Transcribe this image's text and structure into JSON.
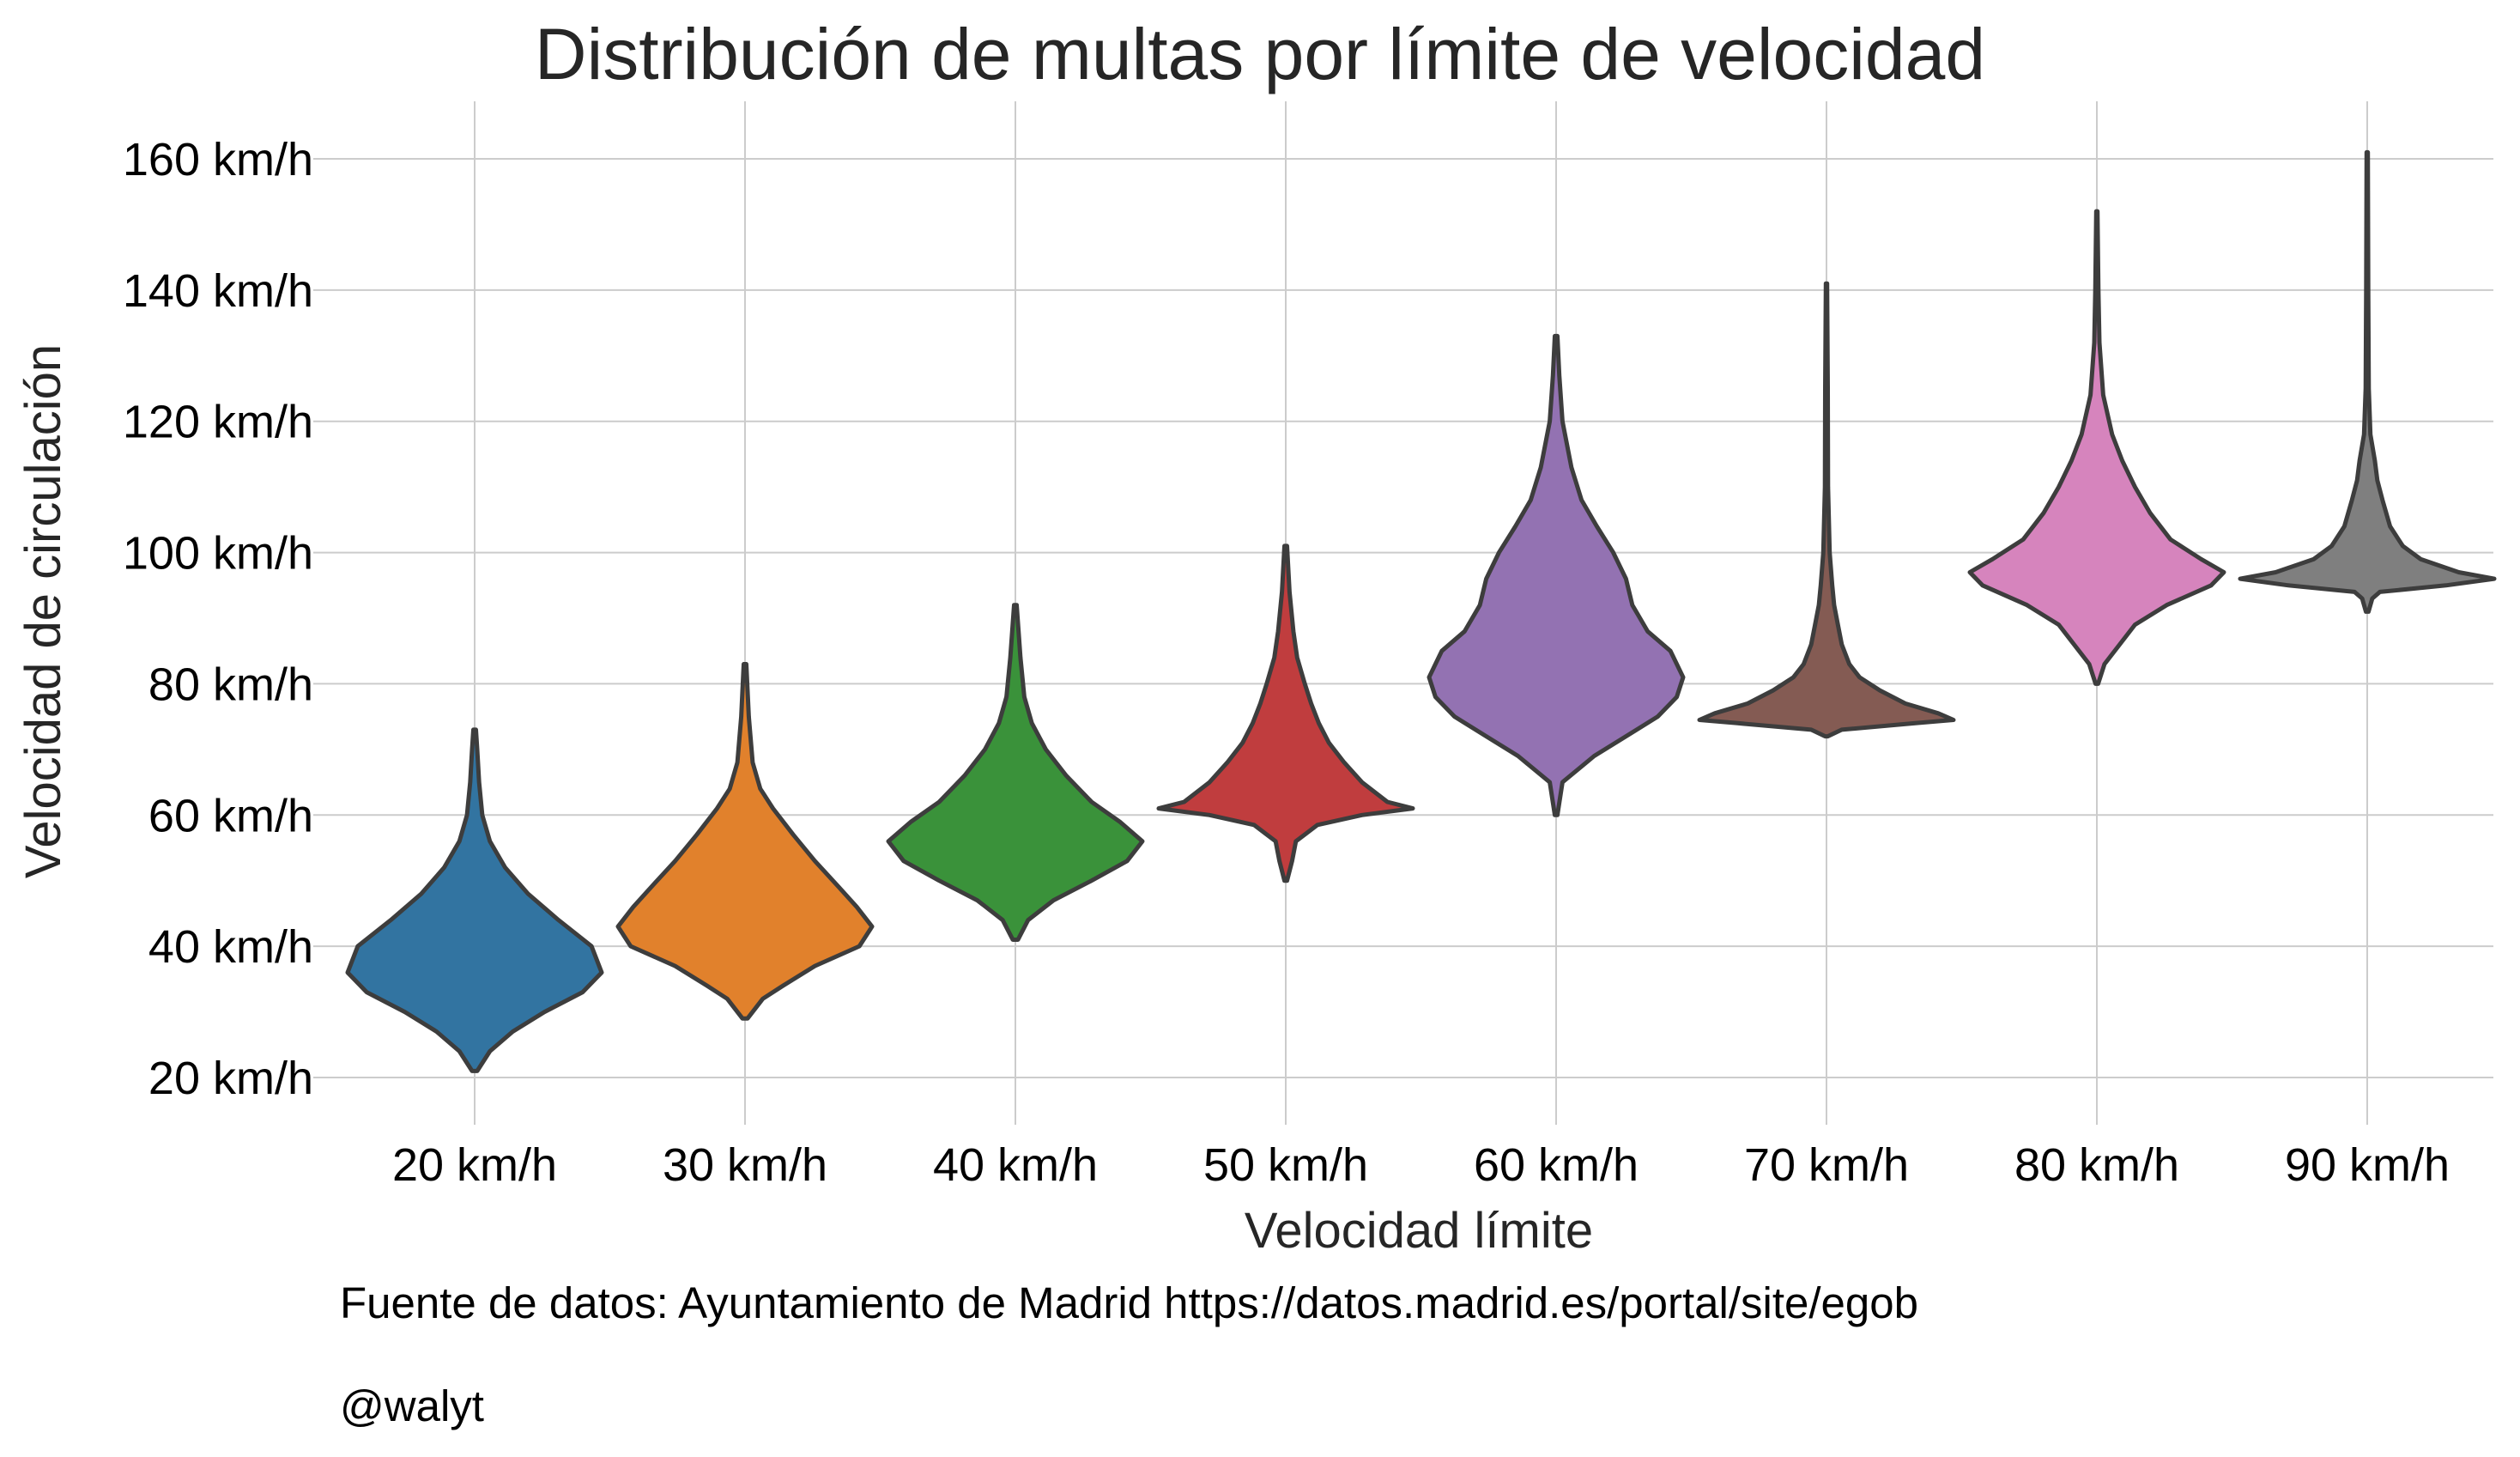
{
  "chart_data": {
    "type": "violin",
    "title": "Distribución de multas por límite de velocidad",
    "xlabel": "Velocidad límite",
    "ylabel": "Velocidad de circulación",
    "ylim": [
      15,
      168
    ],
    "yticks": [
      20,
      40,
      60,
      80,
      100,
      120,
      140,
      160
    ],
    "ytick_labels": [
      "20 km/h",
      "40 km/h",
      "60 km/h",
      "80 km/h",
      "100 km/h",
      "120 km/h",
      "140 km/h",
      "160 km/h"
    ],
    "grid": true,
    "categories": [
      "20 km/h",
      "30 km/h",
      "40 km/h",
      "50 km/h",
      "60 km/h",
      "70 km/h",
      "80 km/h",
      "90 km/h"
    ],
    "colors": [
      "#3274a1",
      "#e1812c",
      "#3a923a",
      "#c03d3e",
      "#9372b2",
      "#845b53",
      "#d684bd",
      "#7f7f7f"
    ],
    "outline_color": "#3d3d3d",
    "series": [
      {
        "min": 21,
        "max": 73,
        "profile": [
          [
            21,
            0.02
          ],
          [
            24,
            0.12
          ],
          [
            27,
            0.3
          ],
          [
            30,
            0.55
          ],
          [
            33,
            0.85
          ],
          [
            36,
            1.0
          ],
          [
            40,
            0.92
          ],
          [
            44,
            0.66
          ],
          [
            48,
            0.42
          ],
          [
            52,
            0.24
          ],
          [
            56,
            0.12
          ],
          [
            60,
            0.06
          ],
          [
            65,
            0.035
          ],
          [
            70,
            0.02
          ],
          [
            73,
            0.01
          ]
        ]
      },
      {
        "min": 29,
        "max": 83,
        "profile": [
          [
            29,
            0.02
          ],
          [
            32,
            0.14
          ],
          [
            34,
            0.3
          ],
          [
            37,
            0.55
          ],
          [
            40,
            0.9
          ],
          [
            43,
            1.0
          ],
          [
            46,
            0.88
          ],
          [
            49,
            0.74
          ],
          [
            53,
            0.55
          ],
          [
            57,
            0.38
          ],
          [
            61,
            0.22
          ],
          [
            64,
            0.12
          ],
          [
            68,
            0.06
          ],
          [
            75,
            0.03
          ],
          [
            83,
            0.01
          ]
        ]
      },
      {
        "min": 41,
        "max": 92,
        "profile": [
          [
            41,
            0.02
          ],
          [
            44,
            0.1
          ],
          [
            47,
            0.3
          ],
          [
            50,
            0.6
          ],
          [
            53,
            0.88
          ],
          [
            56,
            1.0
          ],
          [
            59,
            0.82
          ],
          [
            62,
            0.6
          ],
          [
            66,
            0.4
          ],
          [
            70,
            0.24
          ],
          [
            74,
            0.13
          ],
          [
            78,
            0.07
          ],
          [
            84,
            0.04
          ],
          [
            92,
            0.01
          ]
        ]
      },
      {
        "min": 50,
        "max": 101,
        "profile": [
          [
            50,
            0.01
          ],
          [
            53,
            0.05
          ],
          [
            56,
            0.08
          ],
          [
            58.5,
            0.25
          ],
          [
            60,
            0.6
          ],
          [
            61,
            1.0
          ],
          [
            62,
            0.8
          ],
          [
            65,
            0.6
          ],
          [
            68,
            0.46
          ],
          [
            71,
            0.34
          ],
          [
            74,
            0.26
          ],
          [
            77,
            0.2
          ],
          [
            80,
            0.15
          ],
          [
            84,
            0.09
          ],
          [
            88,
            0.06
          ],
          [
            94,
            0.03
          ],
          [
            101,
            0.01
          ]
        ]
      },
      {
        "min": 60,
        "max": 133,
        "profile": [
          [
            60,
            0.01
          ],
          [
            65,
            0.05
          ],
          [
            69,
            0.3
          ],
          [
            72,
            0.55
          ],
          [
            75,
            0.8
          ],
          [
            78,
            0.95
          ],
          [
            81,
            1.0
          ],
          [
            85,
            0.9
          ],
          [
            88,
            0.72
          ],
          [
            92,
            0.6
          ],
          [
            96,
            0.55
          ],
          [
            100,
            0.45
          ],
          [
            104,
            0.32
          ],
          [
            108,
            0.2
          ],
          [
            113,
            0.12
          ],
          [
            120,
            0.05
          ],
          [
            127,
            0.025
          ],
          [
            133,
            0.01
          ]
        ]
      },
      {
        "min": 72,
        "max": 141,
        "profile": [
          [
            72,
            0.01
          ],
          [
            73,
            0.12
          ],
          [
            74,
            0.7
          ],
          [
            74.5,
            1.0
          ],
          [
            75.5,
            0.88
          ],
          [
            77,
            0.62
          ],
          [
            79,
            0.42
          ],
          [
            81,
            0.26
          ],
          [
            83,
            0.18
          ],
          [
            86,
            0.12
          ],
          [
            89,
            0.09
          ],
          [
            92,
            0.06
          ],
          [
            95,
            0.045
          ],
          [
            100,
            0.025
          ],
          [
            110,
            0.012
          ],
          [
            125,
            0.01
          ],
          [
            141,
            0.005
          ]
        ]
      },
      {
        "min": 80,
        "max": 152,
        "profile": [
          [
            80,
            0.01
          ],
          [
            83,
            0.06
          ],
          [
            86,
            0.18
          ],
          [
            89,
            0.3
          ],
          [
            92,
            0.55
          ],
          [
            95,
            0.9
          ],
          [
            97,
            1.0
          ],
          [
            99,
            0.82
          ],
          [
            102,
            0.58
          ],
          [
            106,
            0.42
          ],
          [
            110,
            0.3
          ],
          [
            114,
            0.2
          ],
          [
            118,
            0.12
          ],
          [
            124,
            0.05
          ],
          [
            132,
            0.02
          ],
          [
            140,
            0.012
          ],
          [
            152,
            0.005
          ]
        ]
      },
      {
        "min": 91,
        "max": 161,
        "profile": [
          [
            91,
            0.01
          ],
          [
            93,
            0.04
          ],
          [
            94,
            0.1
          ],
          [
            95,
            0.62
          ],
          [
            96,
            1.0
          ],
          [
            97,
            0.72
          ],
          [
            99,
            0.42
          ],
          [
            101,
            0.28
          ],
          [
            104,
            0.18
          ],
          [
            108,
            0.12
          ],
          [
            111,
            0.08
          ],
          [
            114,
            0.06
          ],
          [
            118,
            0.025
          ],
          [
            125,
            0.012
          ],
          [
            140,
            0.008
          ],
          [
            161,
            0.005
          ]
        ]
      }
    ]
  },
  "footer": {
    "source": "Fuente de datos: Ayuntamiento de Madrid https://datos.madrid.es/portal/site/egob",
    "credit": "@walyt"
  }
}
